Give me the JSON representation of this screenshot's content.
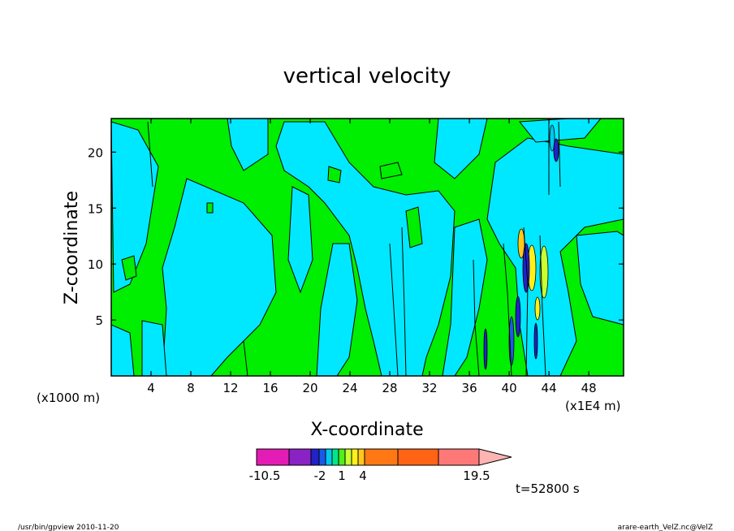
{
  "chart_data": {
    "type": "contour",
    "title": "vertical velocity",
    "xlabel": "X-coordinate",
    "ylabel": "Z-coordinate",
    "x_unit_note": "(x1000 m)",
    "x_scale_note": "(x1E4 m)",
    "xlim": [
      0,
      51.5
    ],
    "ylim": [
      0,
      23
    ],
    "x_ticks": [
      4,
      8,
      12,
      16,
      20,
      24,
      28,
      32,
      36,
      40,
      44,
      48
    ],
    "y_ticks": [
      5,
      10,
      15,
      20
    ],
    "time_label": "t=52800 s",
    "colorbar": {
      "tick_labels": [
        "-10.5",
        "-2",
        "1",
        "4",
        "19.5"
      ],
      "levels": [
        -10.5,
        -8,
        -5,
        -3,
        -2,
        -1,
        0,
        1,
        2,
        3,
        4,
        8,
        12,
        16,
        19.5
      ],
      "colors": [
        "#e21cb4",
        "#8a22c4",
        "#2222c8",
        "#1a5ae6",
        "#00c8f0",
        "#00e68c",
        "#50ee1a",
        "#c8ff32",
        "#fff01a",
        "#ffc81a",
        "#ff7814",
        "#ff6414",
        "#ff1e1e",
        "#ff7878"
      ]
    },
    "dominant_fields": {
      "negative_color": "#00e8ff",
      "positive_color": "#00ee00"
    }
  },
  "footer": {
    "left": "/usr/bin/gpview  2010-11-20",
    "right": "arare-earth_VelZ.nc@VelZ"
  }
}
